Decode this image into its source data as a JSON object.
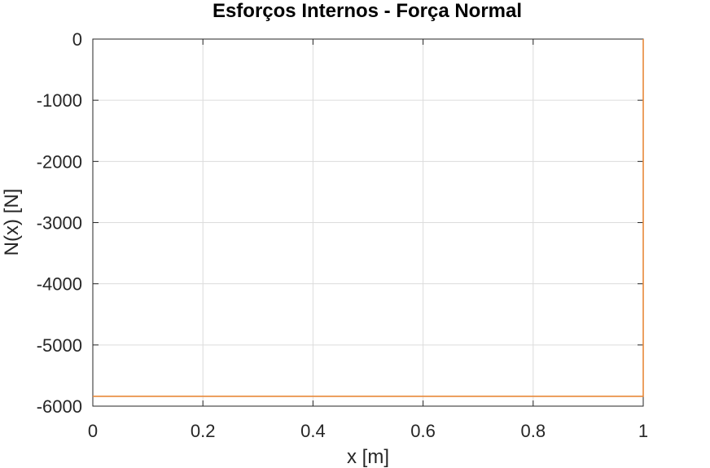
{
  "chart_data": {
    "type": "line",
    "title": "Esforços Internos - Força Normal",
    "xlabel": "x [m]",
    "ylabel": "N(x) [N]",
    "xlim": [
      0,
      1
    ],
    "ylim": [
      -6000,
      0
    ],
    "xticks": [
      0,
      0.2,
      0.4,
      0.6,
      0.8,
      1
    ],
    "xtick_labels": [
      "0",
      "0.2",
      "0.4",
      "0.6",
      "0.8",
      "1"
    ],
    "yticks": [
      0,
      -1000,
      -2000,
      -3000,
      -4000,
      -5000,
      -6000
    ],
    "ytick_labels": [
      "0",
      "-1000",
      "-2000",
      "-3000",
      "-4000",
      "-5000",
      "-6000"
    ],
    "grid": true,
    "series": [
      {
        "color": "#e8893a",
        "x": [
          0,
          1,
          1
        ],
        "y": [
          -5840,
          -5840,
          0
        ]
      }
    ]
  }
}
